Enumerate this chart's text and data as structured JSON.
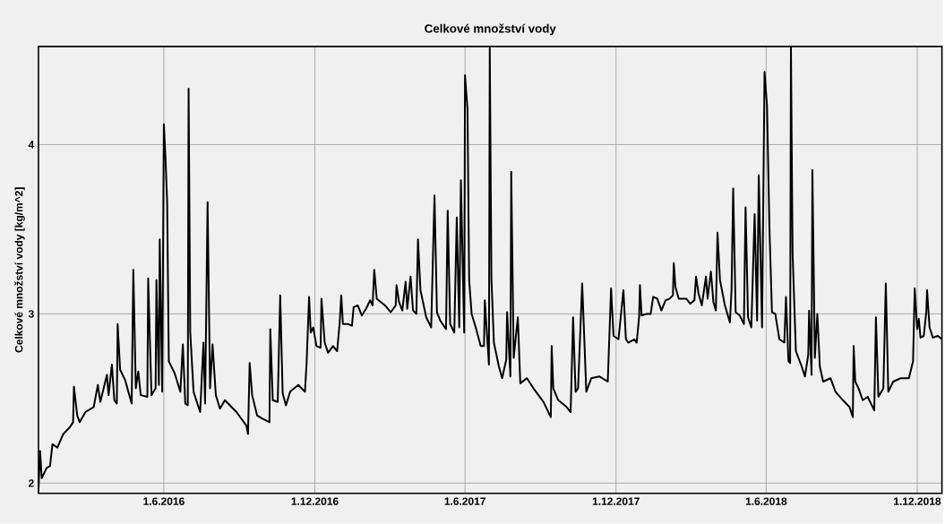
{
  "chart_data": {
    "type": "line",
    "title": "Celkové množství vody",
    "ylabel": "Celkové množství vody [kg/m^2]",
    "xlim": [
      "2016-01-01",
      "2018-12-31"
    ],
    "ylim": [
      1.94,
      4.58
    ],
    "xticks": [
      {
        "value": "2016-06-01",
        "label": "1.6.2016"
      },
      {
        "value": "2016-12-01",
        "label": "1.12.2016"
      },
      {
        "value": "2017-06-01",
        "label": "1.6.2017"
      },
      {
        "value": "2017-12-01",
        "label": "1.12.2017"
      },
      {
        "value": "2018-06-01",
        "label": "1.6.2018"
      },
      {
        "value": "2018-12-01",
        "label": "1.12.2018"
      }
    ],
    "yticks": [
      2,
      3,
      4
    ],
    "grid": true,
    "series": [
      {
        "color": "#000000",
        "x": [
          "2016-01-01",
          "2016-01-03",
          "2016-01-05",
          "2016-01-11",
          "2016-01-15",
          "2016-01-18",
          "2016-01-24",
          "2016-01-31",
          "2016-02-08",
          "2016-02-12",
          "2016-02-13",
          "2016-02-17",
          "2016-02-20",
          "2016-02-27",
          "2016-03-08",
          "2016-03-13",
          "2016-03-16",
          "2016-03-24",
          "2016-03-26",
          "2016-03-30",
          "2016-04-02",
          "2016-04-05",
          "2016-04-06",
          "2016-04-09",
          "2016-04-15",
          "2016-04-23",
          "2016-04-25",
          "2016-04-28",
          "2016-05-01",
          "2016-05-04",
          "2016-05-12",
          "2016-05-13",
          "2016-05-17",
          "2016-05-22",
          "2016-05-23",
          "2016-05-26",
          "2016-05-27",
          "2016-05-30",
          "2016-06-01",
          "2016-06-03",
          "2016-06-05",
          "2016-06-07",
          "2016-06-14",
          "2016-06-21",
          "2016-06-24",
          "2016-06-27",
          "2016-06-30",
          "2016-07-01",
          "2016-07-03",
          "2016-07-07",
          "2016-07-15",
          "2016-07-19",
          "2016-07-21",
          "2016-07-24",
          "2016-07-27",
          "2016-07-30",
          "2016-08-03",
          "2016-08-08",
          "2016-08-14",
          "2016-08-28",
          "2016-09-09",
          "2016-09-11",
          "2016-09-13",
          "2016-09-16",
          "2016-09-22",
          "2016-09-29",
          "2016-10-07",
          "2016-10-08",
          "2016-10-11",
          "2016-10-17",
          "2016-10-20",
          "2016-10-23",
          "2016-10-27",
          "2016-11-01",
          "2016-11-11",
          "2016-11-19",
          "2016-11-21",
          "2016-11-24",
          "2016-11-26",
          "2016-11-29",
          "2016-12-03",
          "2016-12-08",
          "2016-12-09",
          "2016-12-13",
          "2016-12-17",
          "2016-12-23",
          "2016-12-28",
          "2016-12-31",
          "2017-01-02",
          "2017-01-04",
          "2017-01-10",
          "2017-01-15",
          "2017-01-17",
          "2017-01-22",
          "2017-01-27",
          "2017-02-01",
          "2017-02-06",
          "2017-02-09",
          "2017-02-11",
          "2017-02-14",
          "2017-02-24",
          "2017-03-03",
          "2017-03-09",
          "2017-03-10",
          "2017-03-13",
          "2017-03-17",
          "2017-03-21",
          "2017-03-23",
          "2017-03-27",
          "2017-03-30",
          "2017-04-03",
          "2017-04-05",
          "2017-04-08",
          "2017-04-15",
          "2017-04-21",
          "2017-04-25",
          "2017-04-28",
          "2017-05-02",
          "2017-05-09",
          "2017-05-11",
          "2017-05-14",
          "2017-05-19",
          "2017-05-22",
          "2017-05-25",
          "2017-05-27",
          "2017-05-31",
          "2017-06-01",
          "2017-06-04",
          "2017-06-06",
          "2017-06-09",
          "2017-06-14",
          "2017-06-20",
          "2017-06-24",
          "2017-06-25",
          "2017-06-30",
          "2017-07-01",
          "2017-07-03",
          "2017-07-06",
          "2017-07-12",
          "2017-07-16",
          "2017-07-21",
          "2017-07-22",
          "2017-07-26",
          "2017-07-27",
          "2017-07-30",
          "2017-08-04",
          "2017-08-07",
          "2017-08-15",
          "2017-08-23",
          "2017-09-04",
          "2017-09-12",
          "2017-09-13",
          "2017-09-14",
          "2017-09-16",
          "2017-09-22",
          "2017-10-02",
          "2017-10-07",
          "2017-10-10",
          "2017-10-13",
          "2017-10-16",
          "2017-10-21",
          "2017-10-26",
          "2017-11-01",
          "2017-11-11",
          "2017-11-21",
          "2017-11-25",
          "2017-11-28",
          "2017-12-04",
          "2017-12-10",
          "2017-12-13",
          "2017-12-16",
          "2017-12-23",
          "2017-12-26",
          "2017-12-29",
          "2017-12-30",
          "2018-01-01",
          "2018-01-07",
          "2018-01-12",
          "2018-01-15",
          "2018-01-20",
          "2018-01-25",
          "2018-01-30",
          "2018-02-04",
          "2018-02-08",
          "2018-02-09",
          "2018-02-11",
          "2018-02-15",
          "2018-02-24",
          "2018-03-01",
          "2018-03-06",
          "2018-03-08",
          "2018-03-11",
          "2018-03-15",
          "2018-03-20",
          "2018-03-22",
          "2018-03-26",
          "2018-03-29",
          "2018-04-01",
          "2018-04-03",
          "2018-04-06",
          "2018-04-12",
          "2018-04-18",
          "2018-04-20",
          "2018-04-22",
          "2018-04-25",
          "2018-04-30",
          "2018-05-05",
          "2018-05-07",
          "2018-05-10",
          "2018-05-14",
          "2018-05-18",
          "2018-05-21",
          "2018-05-23",
          "2018-05-27",
          "2018-05-30",
          "2018-06-02",
          "2018-06-05",
          "2018-06-08",
          "2018-06-12",
          "2018-06-17",
          "2018-06-23",
          "2018-06-25",
          "2018-06-28",
          "2018-06-30",
          "2018-07-01",
          "2018-07-03",
          "2018-07-07",
          "2018-07-14",
          "2018-07-18",
          "2018-07-22",
          "2018-07-23",
          "2018-07-26",
          "2018-07-27",
          "2018-07-30",
          "2018-08-02",
          "2018-08-05",
          "2018-08-09",
          "2018-08-18",
          "2018-08-24",
          "2018-09-02",
          "2018-09-10",
          "2018-09-14",
          "2018-09-15",
          "2018-09-17",
          "2018-09-21",
          "2018-09-26",
          "2018-10-02",
          "2018-10-10",
          "2018-10-12",
          "2018-10-15",
          "2018-10-21",
          "2018-10-24",
          "2018-10-27",
          "2018-11-02",
          "2018-11-11",
          "2018-11-21",
          "2018-11-26",
          "2018-11-28",
          "2018-12-01",
          "2018-12-03",
          "2018-12-05",
          "2018-12-09",
          "2018-12-12",
          "2018-12-13",
          "2018-12-16",
          "2018-12-20",
          "2018-12-26",
          "2018-12-31"
        ],
        "values": [
          1.95,
          2.19,
          2.03,
          2.09,
          2.1,
          2.23,
          2.21,
          2.29,
          2.33,
          2.36,
          2.57,
          2.4,
          2.36,
          2.42,
          2.45,
          2.58,
          2.48,
          2.64,
          2.52,
          2.7,
          2.49,
          2.47,
          2.94,
          2.67,
          2.61,
          2.47,
          3.26,
          2.56,
          2.66,
          2.52,
          2.51,
          3.21,
          2.52,
          2.56,
          3.2,
          2.58,
          3.44,
          2.54,
          4.12,
          3.92,
          3.66,
          2.72,
          2.65,
          2.54,
          2.82,
          2.47,
          2.46,
          4.33,
          2.89,
          2.54,
          2.42,
          2.83,
          2.47,
          3.66,
          2.56,
          2.82,
          2.52,
          2.44,
          2.49,
          2.42,
          2.34,
          2.29,
          2.71,
          2.52,
          2.4,
          2.38,
          2.36,
          2.91,
          2.49,
          2.48,
          3.11,
          2.53,
          2.46,
          2.54,
          2.58,
          2.54,
          2.71,
          3.1,
          2.89,
          2.92,
          2.81,
          2.8,
          3.09,
          2.83,
          2.77,
          2.81,
          2.78,
          2.94,
          3.11,
          2.94,
          2.94,
          2.93,
          3.04,
          3.05,
          2.99,
          3.03,
          3.08,
          3.05,
          3.26,
          3.09,
          3.05,
          3.01,
          3.05,
          3.17,
          3.07,
          3.02,
          3.19,
          3.03,
          3.22,
          3.02,
          3.0,
          3.44,
          3.14,
          2.98,
          2.92,
          3.7,
          3.01,
          2.96,
          2.91,
          3.61,
          2.94,
          2.89,
          3.57,
          2.92,
          3.79,
          2.89,
          4.41,
          4.21,
          3.2,
          3.0,
          2.92,
          2.81,
          2.81,
          3.08,
          2.7,
          4.57,
          3.21,
          2.83,
          2.69,
          2.62,
          2.73,
          3.01,
          2.63,
          3.84,
          2.74,
          2.98,
          2.59,
          2.62,
          2.56,
          2.48,
          2.4,
          2.39,
          2.81,
          2.56,
          2.49,
          2.45,
          2.42,
          2.98,
          2.54,
          2.56,
          3.18,
          2.54,
          2.62,
          2.63,
          2.6,
          3.15,
          2.87,
          2.85,
          3.14,
          2.85,
          2.83,
          2.85,
          2.83,
          2.98,
          3.17,
          2.99,
          3.0,
          3.0,
          3.1,
          3.09,
          3.02,
          3.08,
          3.09,
          3.11,
          3.3,
          3.16,
          3.09,
          3.09,
          3.06,
          3.08,
          3.22,
          3.12,
          3.05,
          3.22,
          3.09,
          3.25,
          3.07,
          3.02,
          3.48,
          3.2,
          3.05,
          2.95,
          3.14,
          3.74,
          3.01,
          2.99,
          2.94,
          3.63,
          2.98,
          2.92,
          3.59,
          2.96,
          3.82,
          2.92,
          4.43,
          4.23,
          3.5,
          3.01,
          3.0,
          2.85,
          2.83,
          3.1,
          2.72,
          2.71,
          4.58,
          3.36,
          2.78,
          2.69,
          2.63,
          2.76,
          3.02,
          2.64,
          3.85,
          2.74,
          3.0,
          2.69,
          2.6,
          2.62,
          2.54,
          2.49,
          2.45,
          2.39,
          2.81,
          2.6,
          2.56,
          2.49,
          2.51,
          2.43,
          2.98,
          2.51,
          2.56,
          3.18,
          2.54,
          2.6,
          2.62,
          2.62,
          2.72,
          3.15,
          2.91,
          2.97,
          2.86,
          2.87,
          3.01,
          3.14,
          2.92,
          2.86,
          2.87,
          2.85
        ]
      }
    ]
  }
}
